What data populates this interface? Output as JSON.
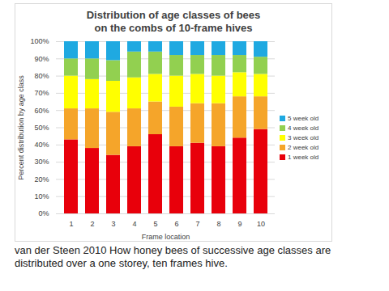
{
  "chart_data": {
    "type": "bar",
    "stacked": true,
    "grid": true,
    "legend": "right",
    "title": "Distribution of age classes of bees\non the combs of 10-frame hives",
    "x_label": "Frame location",
    "y_label": "Percent distribution by age class",
    "caption": "van der Steen 2010 How honey bees of successive age classes are distributed over a one storey, ten frames hive.",
    "categories": [
      "1",
      "2",
      "3",
      "4",
      "5",
      "6",
      "7",
      "8",
      "9",
      "10"
    ],
    "series": [
      {
        "name": "1 week old",
        "color": "#e8000b",
        "values": [
          43,
          38,
          34,
          39,
          46,
          39,
          41,
          39,
          44,
          49
        ]
      },
      {
        "name": "2 week old",
        "color": "#f5a52a",
        "values": [
          18,
          23,
          25,
          22,
          19,
          23,
          23,
          25,
          24,
          19
        ]
      },
      {
        "name": "3 week old",
        "color": "#ffff00",
        "values": [
          19,
          17,
          18,
          18,
          16,
          18,
          17,
          16,
          14,
          13
        ]
      },
      {
        "name": "4 week old",
        "color": "#92d050",
        "values": [
          10,
          12,
          12,
          15,
          13,
          12,
          11,
          12,
          10,
          10
        ]
      },
      {
        "name": "5 week old",
        "color": "#1fa9e1",
        "values": [
          10,
          10,
          11,
          6,
          6,
          8,
          8,
          8,
          8,
          9
        ]
      }
    ],
    "ylim": [
      0,
      100
    ],
    "yticks": [
      {
        "value": 0,
        "label": "0%"
      },
      {
        "value": 10,
        "label": "10%"
      },
      {
        "value": 20,
        "label": "20%"
      },
      {
        "value": 30,
        "label": "30%"
      },
      {
        "value": 40,
        "label": "40%"
      },
      {
        "value": 50,
        "label": "50%"
      },
      {
        "value": 60,
        "label": "60%"
      },
      {
        "value": 70,
        "label": "70%"
      },
      {
        "value": 80,
        "label": "80%"
      },
      {
        "value": 90,
        "label": "90%"
      },
      {
        "value": 100,
        "label": "100%"
      }
    ]
  }
}
